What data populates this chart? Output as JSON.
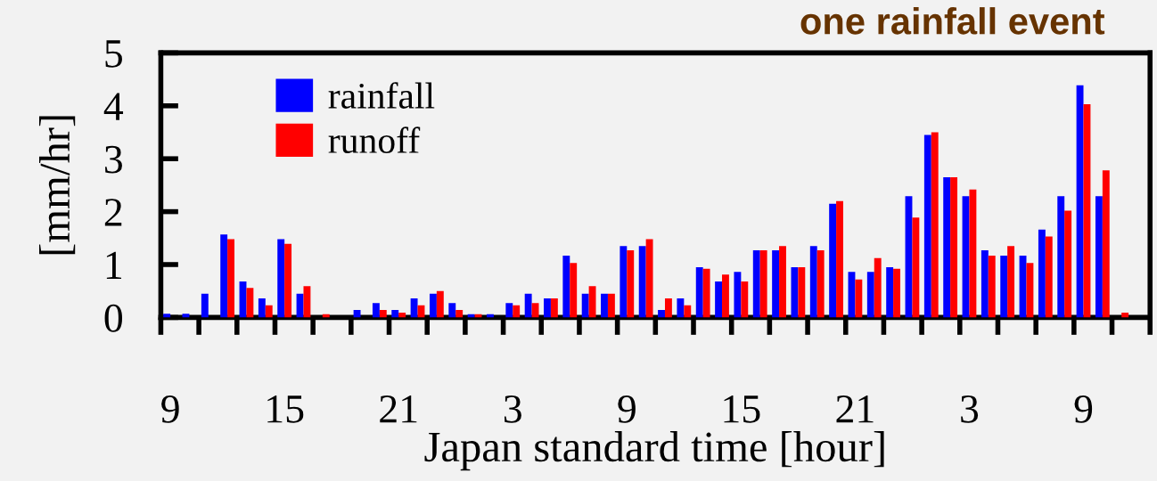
{
  "chart_data": {
    "type": "bar",
    "title": "one rainfall event",
    "xlabel": "Japan standard time [hour]",
    "ylabel": "[mm/hr]",
    "categories": [
      "9",
      null,
      null,
      null,
      null,
      null,
      "15",
      null,
      null,
      null,
      null,
      null,
      "21",
      null,
      null,
      null,
      null,
      null,
      "3",
      null,
      null,
      null,
      null,
      null,
      "9",
      null,
      null,
      null,
      null,
      null,
      "15",
      null,
      null,
      null,
      null,
      null,
      "21",
      null,
      null,
      null,
      null,
      null,
      "3",
      null,
      null,
      null,
      null,
      null,
      "9",
      null,
      null
    ],
    "series": [
      {
        "name": "rainfall",
        "color": "#0000ff",
        "values": [
          0.07,
          0.07,
          0.45,
          1.57,
          0.68,
          0.36,
          1.48,
          0.45,
          null,
          null,
          0.14,
          0.27,
          0.14,
          0.36,
          0.45,
          0.27,
          0.06,
          0.06,
          0.27,
          0.45,
          0.36,
          1.17,
          0.45,
          0.45,
          1.35,
          1.35,
          0.14,
          0.36,
          0.95,
          0.68,
          0.86,
          1.27,
          1.27,
          0.95,
          1.35,
          2.15,
          0.86,
          0.86,
          0.95,
          2.29,
          3.45,
          2.65,
          2.29,
          1.27,
          1.17,
          1.17,
          1.66,
          2.29,
          4.39,
          2.29,
          null
        ]
      },
      {
        "name": "runoff",
        "color": "#ff0000",
        "values": [
          null,
          null,
          null,
          1.48,
          0.56,
          0.23,
          1.39,
          0.59,
          0.06,
          null,
          null,
          0.14,
          0.09,
          0.23,
          0.5,
          0.14,
          0.06,
          null,
          0.23,
          0.27,
          0.36,
          1.03,
          0.59,
          0.45,
          1.27,
          1.48,
          0.36,
          0.23,
          0.92,
          0.81,
          0.68,
          1.27,
          1.35,
          0.95,
          1.27,
          2.2,
          0.72,
          1.12,
          0.92,
          1.89,
          3.5,
          2.65,
          2.42,
          1.17,
          1.35,
          1.03,
          1.53,
          2.02,
          4.03,
          2.78,
          0.09
        ]
      }
    ],
    "ylim": [
      0,
      5
    ],
    "yticks": [
      0,
      1,
      2,
      3,
      4,
      5
    ],
    "legend": "top left",
    "grid": false
  }
}
